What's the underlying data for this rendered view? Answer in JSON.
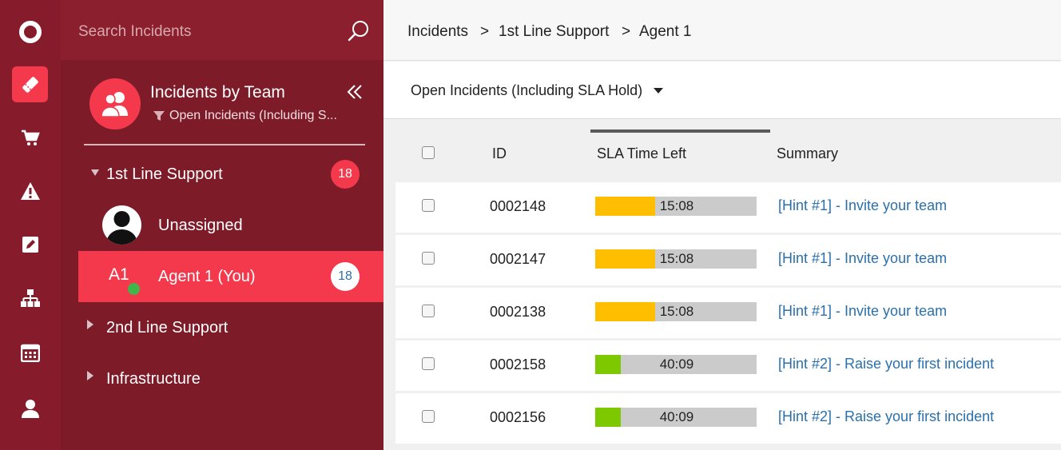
{
  "search": {
    "placeholder": "Search Incidents"
  },
  "rail": {
    "items": [
      {
        "icon": "logo-ring-icon"
      },
      {
        "icon": "ticket-icon",
        "active": true
      },
      {
        "icon": "cart-icon"
      },
      {
        "icon": "warning-icon"
      },
      {
        "icon": "edit-icon"
      },
      {
        "icon": "org-chart-icon"
      },
      {
        "icon": "calendar-icon"
      },
      {
        "icon": "user-icon"
      }
    ]
  },
  "sidebar": {
    "title": "Incidents by Team",
    "filter": "Open Incidents (Including S...",
    "groups": [
      {
        "label": "1st Line Support",
        "count": "18",
        "expanded": true
      },
      {
        "label": "2nd Line Support",
        "expanded": false
      },
      {
        "label": "Infrastructure",
        "expanded": false
      }
    ],
    "members": [
      {
        "label": "Unassigned"
      },
      {
        "label": "Agent 1 (You)",
        "initials": "A1",
        "count": "18"
      }
    ]
  },
  "breadcrumb": {
    "items": [
      "Incidents",
      "1st Line Support",
      "Agent 1"
    ],
    "separator": ">"
  },
  "view": {
    "selected": "Open Incidents (Including SLA Hold)"
  },
  "table": {
    "headers": {
      "id": "ID",
      "sla": "SLA Time Left",
      "summary": "Summary"
    },
    "rows": [
      {
        "id": "0002148",
        "sla": "15:08",
        "sla_fraction": 0.37,
        "sla_color": "#ffbf00",
        "summary": "[Hint #1] - Invite your team"
      },
      {
        "id": "0002147",
        "sla": "15:08",
        "sla_fraction": 0.37,
        "sla_color": "#ffbf00",
        "summary": "[Hint #1] - Invite your team"
      },
      {
        "id": "0002138",
        "sla": "15:08",
        "sla_fraction": 0.37,
        "sla_color": "#ffbf00",
        "summary": "[Hint #1] - Invite your team"
      },
      {
        "id": "0002158",
        "sla": "40:09",
        "sla_fraction": 0.16,
        "sla_color": "#7ec800",
        "summary": "[Hint #2] - Raise your first incident"
      },
      {
        "id": "0002156",
        "sla": "40:09",
        "sla_fraction": 0.16,
        "sla_color": "#7ec800",
        "summary": "[Hint #2] - Raise your first incident"
      }
    ]
  },
  "colors": {
    "accent": "#f5394c",
    "rail": "#861c2b",
    "sidebar": "#7e1b28",
    "link": "#2a70ad"
  }
}
